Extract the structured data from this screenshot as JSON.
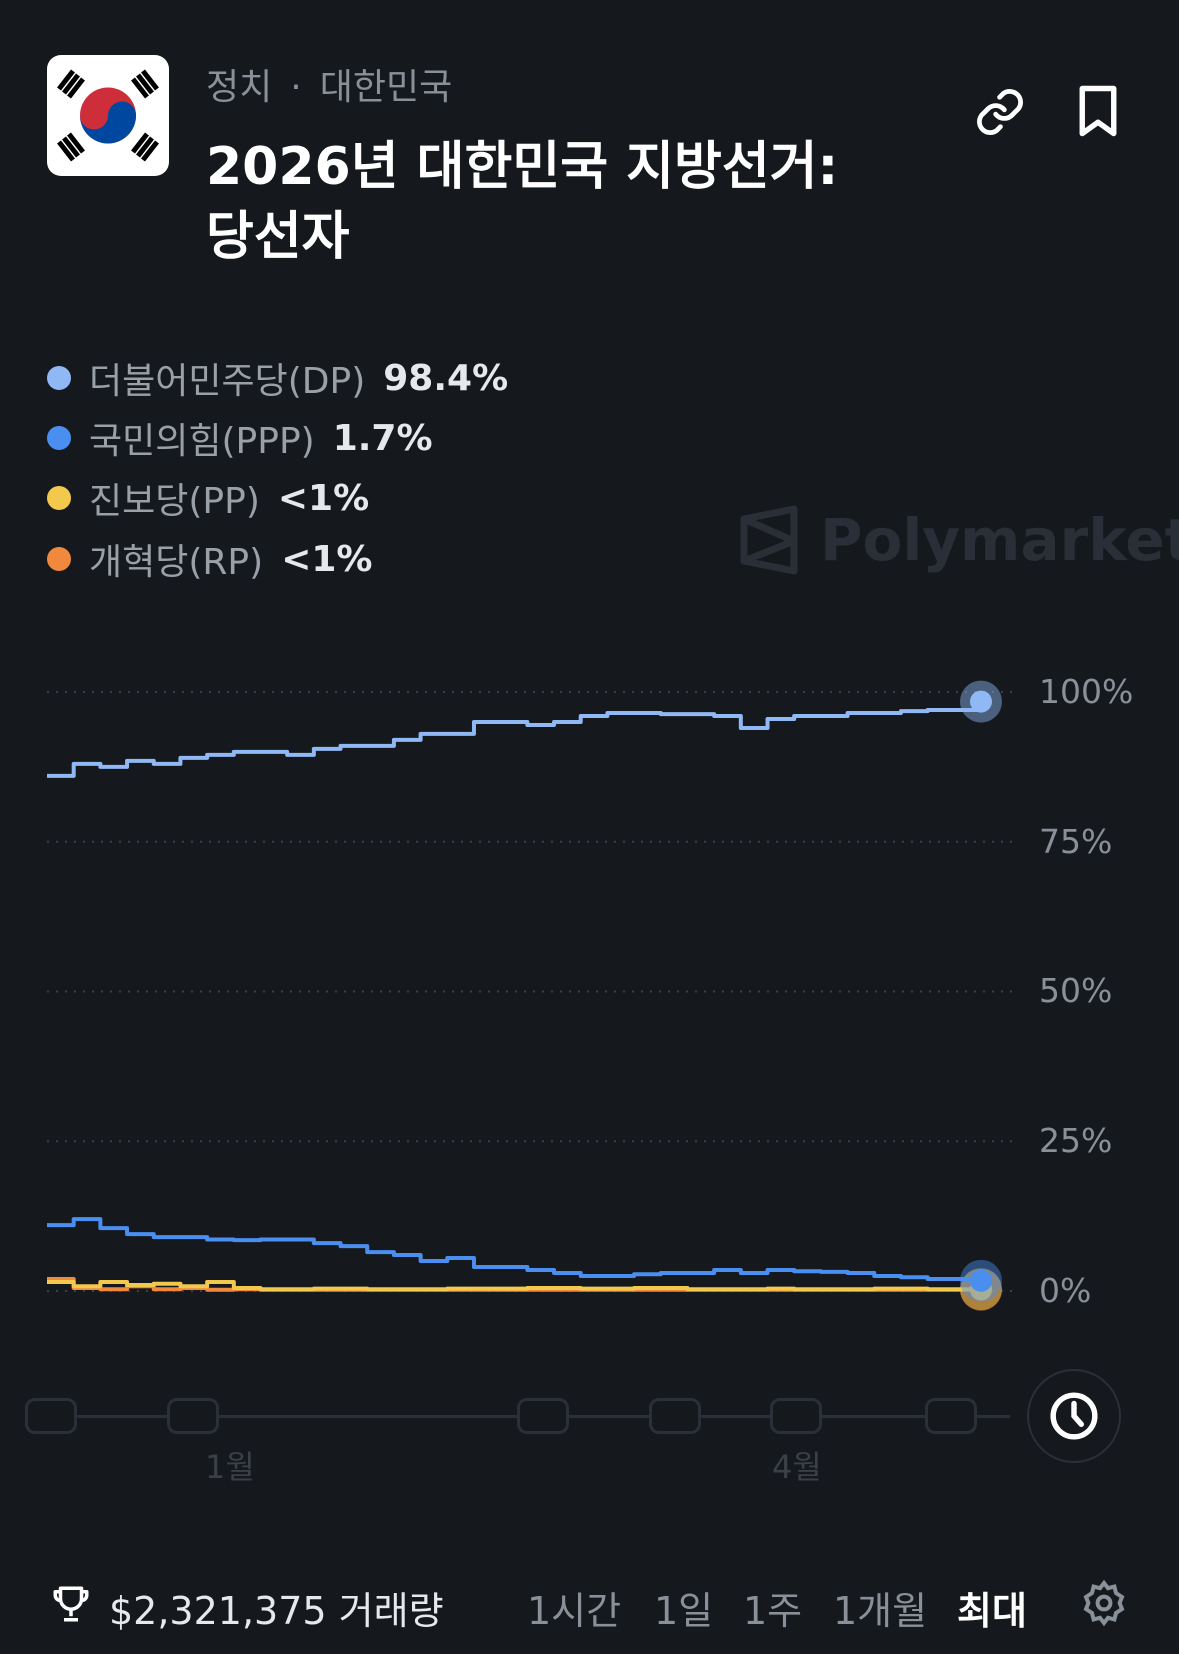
{
  "header": {
    "category": "정치",
    "country": "대한민국",
    "title_line1": "2026년 대한민국 지방선거:",
    "title_line2": "당선자"
  },
  "icons": {
    "link": "link-icon",
    "bookmark": "bookmark-icon",
    "clock": "clock-icon",
    "trophy": "trophy-icon",
    "settings": "gear-icon"
  },
  "watermark": "Polymarket",
  "chart_data": {
    "type": "line",
    "yticks": [
      "100%",
      "75%",
      "50%",
      "25%",
      "0%"
    ],
    "ylim": [
      0,
      100
    ],
    "xticks": [
      "1월",
      "4월"
    ],
    "grid": true,
    "legend_position": "top-left",
    "series": [
      {
        "name": "더불어민주당(DP)",
        "label": "98.4%",
        "color": "#8fb8f5",
        "values": [
          86,
          88,
          87.5,
          88.5,
          88,
          89,
          89.5,
          90,
          90,
          89.5,
          90.5,
          91,
          91,
          92,
          93,
          93,
          95,
          95,
          94.5,
          95,
          96,
          96.5,
          96.5,
          96.3,
          96.3,
          96,
          94,
          95.5,
          96,
          96,
          96.5,
          96.5,
          96.8,
          97,
          97,
          98.4
        ]
      },
      {
        "name": "국민의힘(PPP)",
        "label": "1.7%",
        "color": "#4a8ff0",
        "values": [
          11,
          12,
          10.5,
          9.5,
          9,
          9,
          8.6,
          8.5,
          8.6,
          8.6,
          8,
          7.5,
          6.5,
          6,
          5,
          5.5,
          4,
          4,
          3.5,
          3,
          2.5,
          2.5,
          2.8,
          3,
          3,
          3.5,
          3,
          3.5,
          3.3,
          3.2,
          3,
          2.5,
          2.3,
          2,
          2,
          1.7
        ]
      },
      {
        "name": "진보당(PP)",
        "label": "<1%",
        "color": "#f2c94c",
        "values": [
          1.5,
          0.8,
          1.5,
          1,
          1.2,
          0.8,
          1.5,
          0.5,
          0.3,
          0.3,
          0.4,
          0.4,
          0.3,
          0.3,
          0.3,
          0.4,
          0.4,
          0.4,
          0.5,
          0.5,
          0.4,
          0.4,
          0.5,
          0.5,
          0.3,
          0.3,
          0.3,
          0.4,
          0.3,
          0.3,
          0.3,
          0.4,
          0.4,
          0.3,
          0.3,
          0.3
        ]
      },
      {
        "name": "개혁당(RP)",
        "label": "<1%",
        "color": "#f0883e",
        "values": [
          2,
          0.5,
          0.3,
          0.8,
          0.3,
          0.5,
          0.2,
          0.3,
          0.2,
          0.2,
          0.2,
          0.2,
          0.2,
          0.2,
          0.2,
          0.2,
          0.2,
          0.2,
          0.2,
          0.2,
          0.2,
          0.2,
          0.2,
          0.2,
          0.2,
          0.2,
          0.2,
          0.2,
          0.2,
          0.2,
          0.2,
          0.2,
          0.2,
          0.2,
          0.2,
          0.2
        ]
      }
    ]
  },
  "footer": {
    "volume": "$2,321,375 거래량",
    "ranges": [
      "1시간",
      "1일",
      "1주",
      "1개월",
      "최대"
    ],
    "active_range": "최대"
  }
}
